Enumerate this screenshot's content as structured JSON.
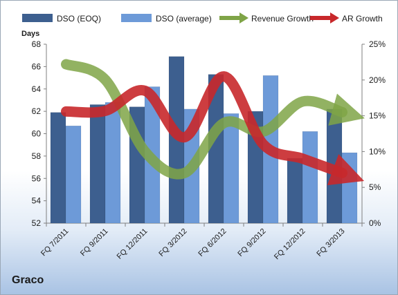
{
  "company": "Graco",
  "chart_data": {
    "type": "bar",
    "categories": [
      "FQ 7/2011",
      "FQ 9/2011",
      "FQ 12/2011",
      "FQ 3/2012",
      "FQ 6/2012",
      "FQ 9/2012",
      "FQ 12/2012",
      "FQ 3/2013"
    ],
    "series": [
      {
        "name": "DSO (EOQ)",
        "axis": "left",
        "color": "#3d5f8f",
        "values": [
          61.9,
          62.6,
          62.4,
          66.9,
          65.3,
          62.0,
          57.8,
          62.2
        ]
      },
      {
        "name": "DSO (average)",
        "axis": "left",
        "color": "#6d9ad8",
        "values": [
          60.7,
          62.8,
          64.2,
          62.2,
          61.8,
          65.2,
          60.2,
          58.3
        ]
      },
      {
        "name": "Revenue Growth",
        "axis": "right",
        "type": "line",
        "color": "#7fa447",
        "values": [
          22.2,
          20.0,
          10.0,
          7.0,
          14.0,
          12.8,
          17.0,
          15.5
        ]
      },
      {
        "name": "AR Growth",
        "axis": "right",
        "type": "line",
        "color": "#c8282b",
        "values": [
          15.6,
          15.7,
          18.5,
          12.0,
          20.5,
          11.0,
          9.0,
          7.0
        ]
      }
    ],
    "ylabel": "Days",
    "ylim": [
      52,
      68
    ],
    "yticks": [
      "52",
      "54",
      "56",
      "58",
      "60",
      "62",
      "64",
      "66",
      "68"
    ],
    "y2lim": [
      0,
      25
    ],
    "y2ticks": [
      "0%",
      "5%",
      "10%",
      "15%",
      "20%",
      "25%"
    ],
    "legend": "top",
    "grid": false
  }
}
